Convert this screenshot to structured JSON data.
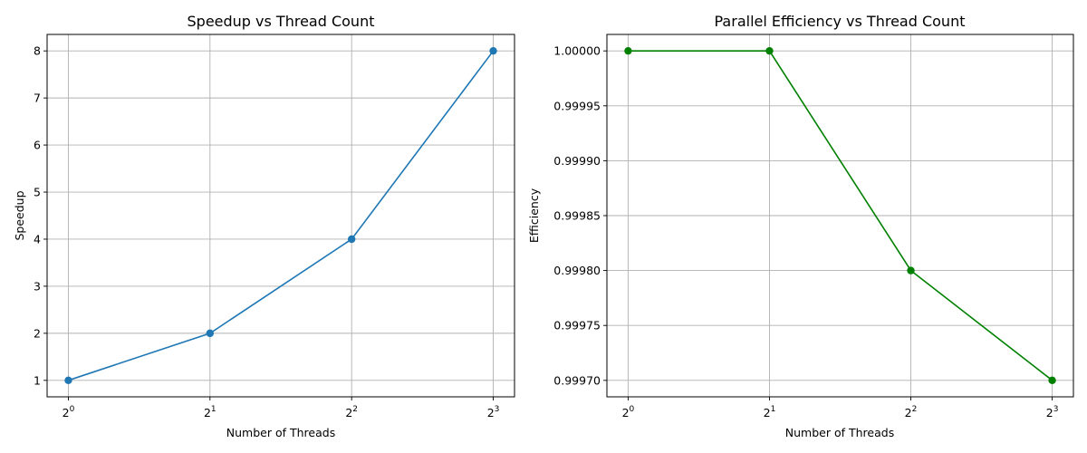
{
  "chart_data": [
    {
      "type": "line",
      "title": "Speedup vs Thread Count",
      "xlabel": "Number of Threads",
      "ylabel": "Speedup",
      "x": [
        1,
        2,
        4,
        8
      ],
      "x_scale": "log2",
      "x_tick_labels": [
        {
          "base": "2",
          "exp": "0"
        },
        {
          "base": "2",
          "exp": "1"
        },
        {
          "base": "2",
          "exp": "2"
        },
        {
          "base": "2",
          "exp": "3"
        }
      ],
      "y_ticks": [
        "1",
        "2",
        "3",
        "4",
        "5",
        "6",
        "7",
        "8"
      ],
      "ylim": [
        0.65,
        8.35
      ],
      "grid": true,
      "series": [
        {
          "values": [
            1,
            2,
            4,
            8
          ],
          "color": "#1f77b4",
          "marker": "circle"
        }
      ]
    },
    {
      "type": "line",
      "title": "Parallel Efficiency vs Thread Count",
      "xlabel": "Number of Threads",
      "ylabel": "Efficiency",
      "x": [
        1,
        2,
        4,
        8
      ],
      "x_scale": "log2",
      "x_tick_labels": [
        {
          "base": "2",
          "exp": "0"
        },
        {
          "base": "2",
          "exp": "1"
        },
        {
          "base": "2",
          "exp": "2"
        },
        {
          "base": "2",
          "exp": "3"
        }
      ],
      "y_ticks": [
        "0.99970",
        "0.99975",
        "0.99980",
        "0.99985",
        "0.99990",
        "0.99995",
        "1.00000"
      ],
      "ylim": [
        0.999685,
        1.000015
      ],
      "grid": true,
      "series": [
        {
          "values": [
            1.0,
            1.0,
            0.9998,
            0.9997
          ],
          "color": "#008000",
          "marker": "circle"
        }
      ]
    }
  ]
}
